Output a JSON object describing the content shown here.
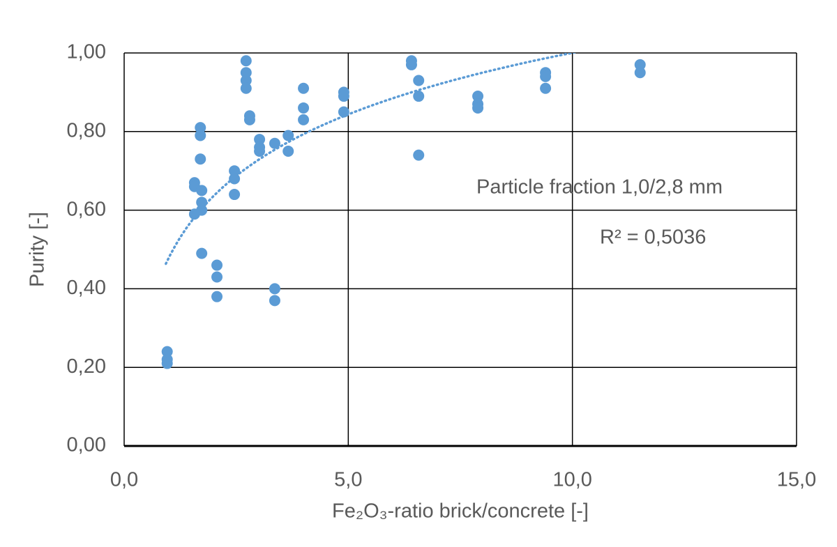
{
  "chart_data": {
    "type": "scatter",
    "xlabel": "Fe₂O₃-ratio brick/concrete [-]",
    "ylabel": "Purity [-]",
    "annotations": [
      "Particle fraction 1,0/2,8 mm",
      "R² = 0,5036"
    ],
    "color": "#5b9bd5",
    "grid": true,
    "xlim": [
      0,
      15
    ],
    "ylim": [
      0,
      1
    ],
    "xticks": [
      {
        "value": 0,
        "label": "0,0"
      },
      {
        "value": 5,
        "label": "5,0"
      },
      {
        "value": 10,
        "label": "10,0"
      },
      {
        "value": 15,
        "label": "15,0"
      }
    ],
    "yticks": [
      {
        "value": 0,
        "label": "0,00"
      },
      {
        "value": 0.2,
        "label": "0,20"
      },
      {
        "value": 0.4,
        "label": "0,40"
      },
      {
        "value": 0.6,
        "label": "0,60"
      },
      {
        "value": 0.8,
        "label": "0,80"
      },
      {
        "value": 1,
        "label": "1,00"
      }
    ],
    "trendline": {
      "type": "log",
      "slope": 0.226,
      "intercept": 0.48,
      "xrange": [
        0.93,
        10.1
      ],
      "color": "#5b9bd5"
    },
    "x": [
      0.96,
      0.96,
      0.96,
      1.57,
      1.57,
      1.57,
      1.7,
      1.7,
      1.7,
      1.73,
      1.73,
      1.73,
      1.73,
      2.07,
      2.07,
      2.07,
      2.46,
      2.46,
      2.46,
      2.72,
      2.72,
      2.72,
      2.72,
      2.8,
      2.8,
      3.02,
      3.02,
      3.02,
      3.36,
      3.36,
      3.36,
      3.66,
      3.66,
      4.0,
      4.0,
      4.0,
      4.9,
      4.9,
      4.9,
      6.41,
      6.41,
      6.57,
      6.57,
      6.57,
      7.89,
      7.89,
      7.89,
      9.4,
      9.4,
      9.4,
      11.51,
      11.51
    ],
    "values": [
      0.24,
      0.22,
      0.21,
      0.67,
      0.66,
      0.59,
      0.81,
      0.79,
      0.73,
      0.65,
      0.62,
      0.6,
      0.49,
      0.46,
      0.43,
      0.38,
      0.7,
      0.68,
      0.64,
      0.98,
      0.95,
      0.93,
      0.91,
      0.84,
      0.83,
      0.78,
      0.76,
      0.75,
      0.77,
      0.4,
      0.37,
      0.79,
      0.75,
      0.91,
      0.86,
      0.83,
      0.9,
      0.89,
      0.85,
      0.98,
      0.97,
      0.93,
      0.89,
      0.74,
      0.89,
      0.87,
      0.86,
      0.95,
      0.94,
      0.91,
      0.97,
      0.95
    ]
  }
}
